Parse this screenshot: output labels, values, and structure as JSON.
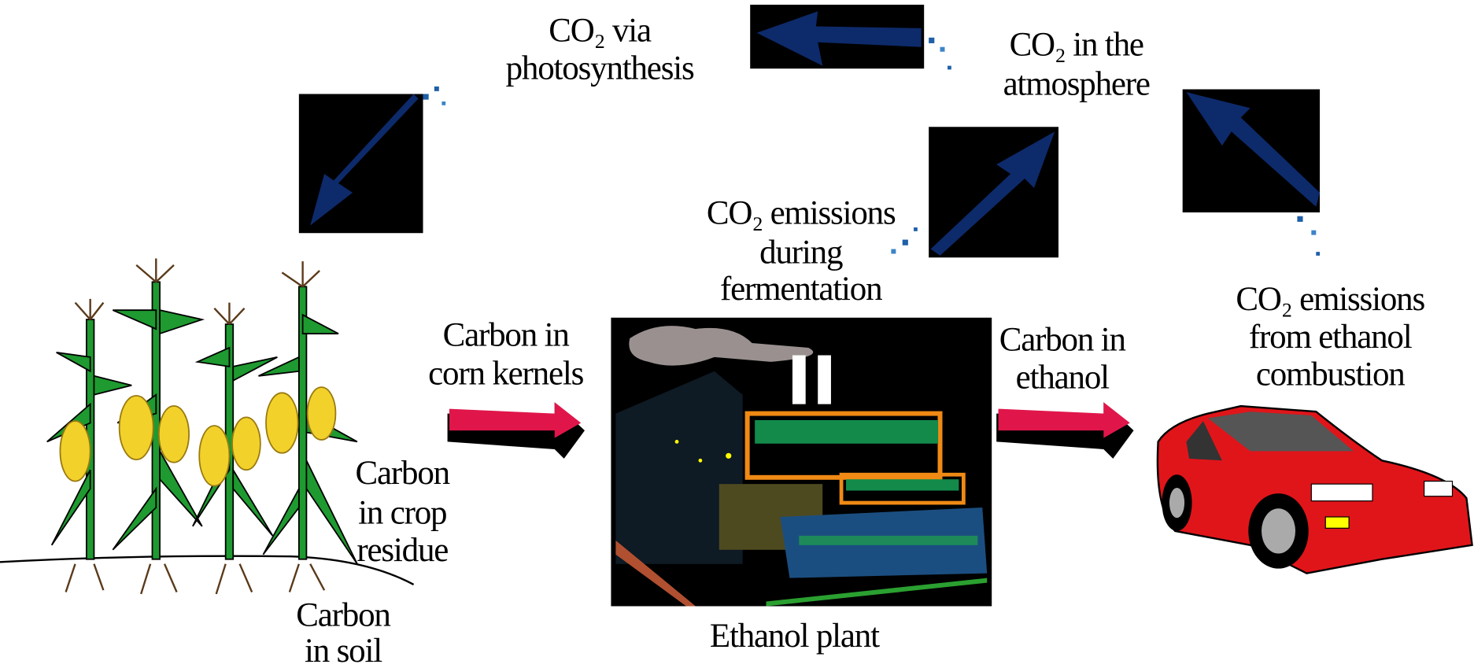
{
  "labels": [
    {
      "lines": [
        "CO₂ via",
        "photosynthesis"
      ]
    },
    {
      "lines": [
        "CO₂ in the",
        "atmosphere"
      ]
    },
    {
      "lines": [
        "CO₂ emissions",
        "during",
        "fermentation"
      ]
    },
    {
      "lines": [
        "CO₂ emissions",
        "from ethanol",
        "combustion"
      ]
    },
    {
      "lines": [
        "Carbon in",
        "corn kernels"
      ]
    },
    {
      "lines": [
        "Carbon in",
        "ethanol"
      ]
    },
    {
      "lines": [
        "Carbon",
        "in crop",
        "residue"
      ]
    },
    {
      "lines": [
        "Carbon",
        "in soil"
      ]
    },
    {
      "lines": [
        "Ethanol plant"
      ]
    }
  ]
}
